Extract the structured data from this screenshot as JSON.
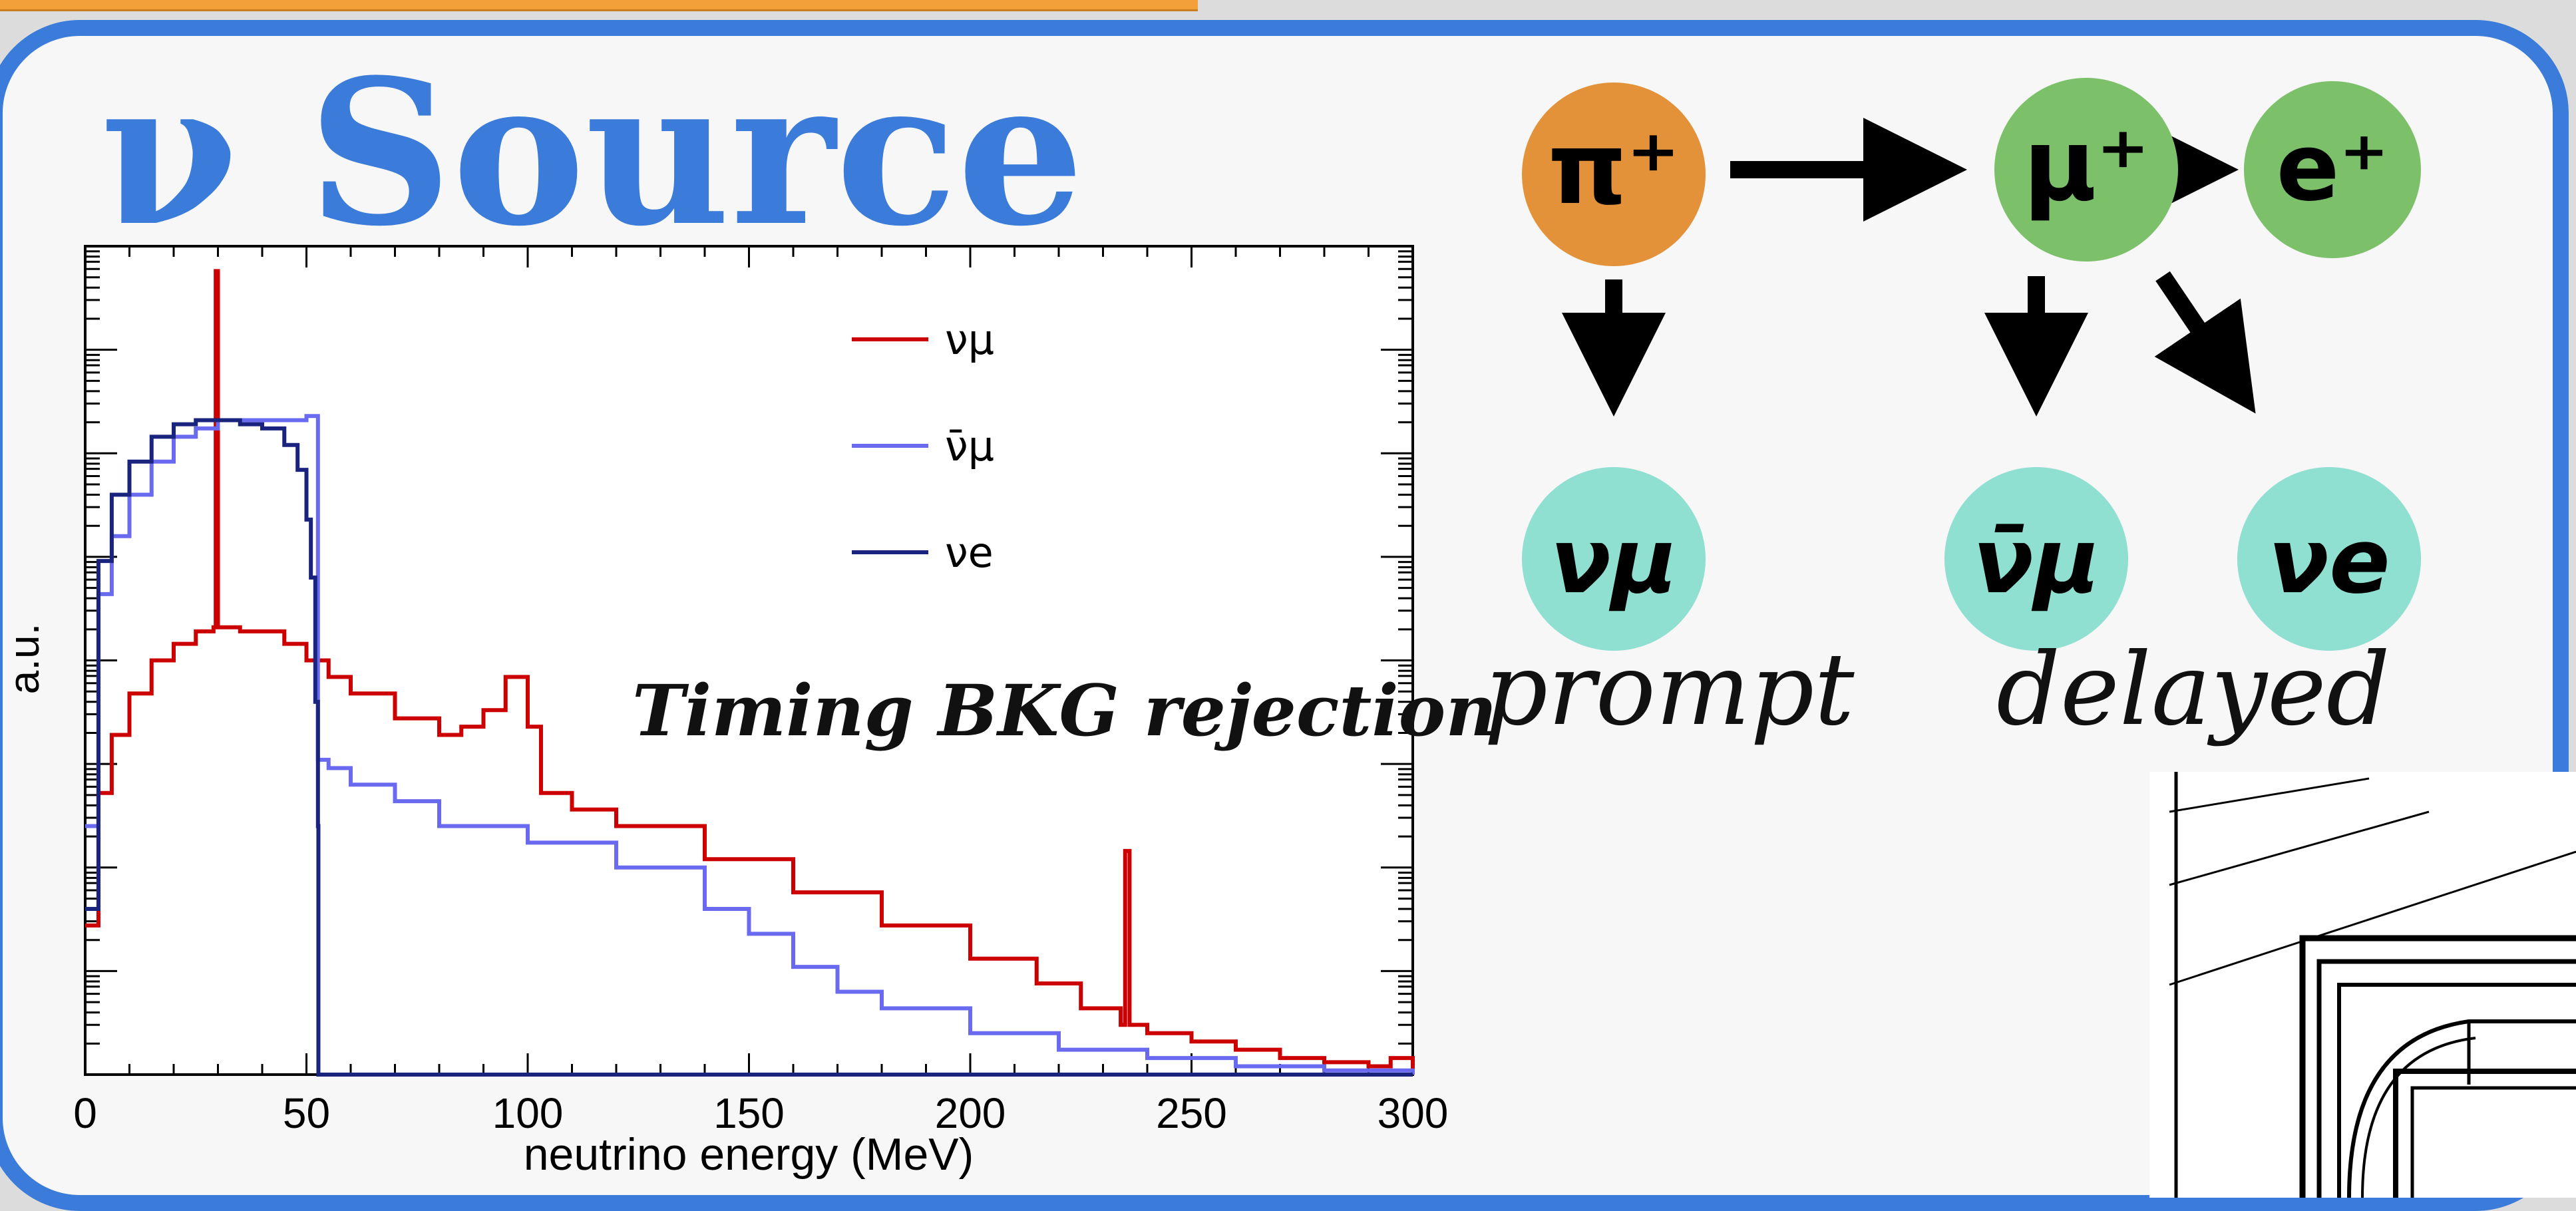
{
  "slide": {
    "title": "ν Source",
    "overlay_text": "Timing BKG rejection",
    "colors": {
      "accent": "#3b7bd9",
      "panel": "#f7f7f7",
      "pion": "#e3923a",
      "muon_positron": "#7cc06a",
      "neutrino": "#8fe0d0"
    }
  },
  "chart_data": {
    "type": "line",
    "title": "",
    "xlabel": "neutrino energy (MeV)",
    "ylabel": "a.u.",
    "xlim": [
      0,
      300
    ],
    "ylim": [
      0,
      1
    ],
    "xticks": [
      "0",
      "50",
      "100",
      "150",
      "200",
      "250",
      "300"
    ],
    "legend_position": "top-right",
    "series": [
      {
        "name": "νμ",
        "color": "#cc0000",
        "x": [
          0,
          3,
          6,
          10,
          15,
          20,
          25,
          29,
          29.5,
          30,
          30.5,
          35,
          45,
          50,
          55,
          60,
          70,
          80,
          85,
          90,
          95,
          100,
          103,
          110,
          120,
          140,
          160,
          180,
          200,
          215,
          225,
          234,
          235,
          236,
          240,
          250,
          260,
          270,
          280,
          290,
          295,
          300
        ],
        "y": [
          0.18,
          0.34,
          0.41,
          0.46,
          0.5,
          0.52,
          0.535,
          0.54,
          0.97,
          0.54,
          0.54,
          0.535,
          0.52,
          0.5,
          0.48,
          0.46,
          0.43,
          0.41,
          0.42,
          0.44,
          0.48,
          0.42,
          0.34,
          0.32,
          0.3,
          0.26,
          0.22,
          0.18,
          0.14,
          0.11,
          0.08,
          0.06,
          0.27,
          0.06,
          0.05,
          0.04,
          0.03,
          0.02,
          0.015,
          0.01,
          0.02,
          0.0
        ]
      },
      {
        "name": "ν̄μ",
        "color": "#6a6af0",
        "x": [
          0,
          3,
          6,
          10,
          15,
          20,
          25,
          30,
          40,
          50,
          52.5,
          52.6,
          55,
          60,
          70,
          80,
          100,
          120,
          140,
          150,
          160,
          170,
          180,
          200,
          220,
          240,
          260,
          280,
          300
        ],
        "y": [
          0.3,
          0.58,
          0.65,
          0.7,
          0.74,
          0.77,
          0.78,
          0.79,
          0.79,
          0.795,
          0.795,
          0.38,
          0.37,
          0.35,
          0.33,
          0.3,
          0.28,
          0.25,
          0.2,
          0.17,
          0.13,
          0.1,
          0.08,
          0.05,
          0.03,
          0.02,
          0.01,
          0.005,
          0.0
        ]
      },
      {
        "name": "νe",
        "color": "#1a237e",
        "x": [
          0,
          3,
          6,
          10,
          15,
          20,
          25,
          30,
          35,
          40,
          45,
          48,
          50,
          51,
          52,
          52.6,
          52.7,
          300
        ],
        "y": [
          0.2,
          0.62,
          0.7,
          0.74,
          0.77,
          0.785,
          0.79,
          0.79,
          0.785,
          0.78,
          0.76,
          0.73,
          0.67,
          0.6,
          0.45,
          0.3,
          0.0,
          0.0
        ]
      }
    ]
  },
  "decay_diagram": {
    "particles": {
      "pion": "π⁺",
      "muon": "μ⁺",
      "positron": "e⁺",
      "nu_mu": "νμ",
      "nu_mu_bar": "ν̄μ",
      "nu_e": "νe"
    },
    "labels": {
      "prompt": "prompt",
      "delayed": "delayed"
    }
  }
}
